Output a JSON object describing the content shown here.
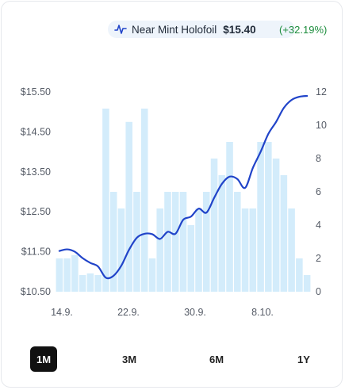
{
  "header": {
    "condition": "Near Mint Holofoil",
    "price": "$15.40",
    "change": "(+32.19%)",
    "icon": "price-line-icon"
  },
  "ranges": [
    {
      "label": "1M",
      "active": true
    },
    {
      "label": "3M",
      "active": false
    },
    {
      "label": "6M",
      "active": false
    },
    {
      "label": "1Y",
      "active": false
    }
  ],
  "colors": {
    "line": "#2144c9",
    "bars": "#d3ecfb",
    "positive": "#1e8e3e"
  },
  "chart_data": {
    "type": "bar+line",
    "x_tick_labels": [
      "14.9.",
      "22.9.",
      "30.9.",
      "8.10."
    ],
    "y_left": {
      "ticks": [
        "$15.50",
        "$14.50",
        "$13.50",
        "$12.50",
        "$11.50",
        "$10.50"
      ],
      "range": [
        10.5,
        15.5
      ]
    },
    "y_right": {
      "ticks": [
        "12",
        "10",
        "8",
        "6",
        "4",
        "2",
        "0"
      ],
      "range": [
        0,
        12
      ]
    },
    "volume": [
      2,
      2,
      2.2,
      1,
      1.1,
      1,
      11,
      6,
      5,
      10.2,
      6,
      11,
      2,
      5,
      6,
      6,
      6,
      4,
      5,
      6,
      8,
      7,
      9,
      6,
      5,
      5,
      9,
      9,
      8,
      7,
      5,
      2,
      1
    ],
    "price": [
      11.52,
      11.56,
      11.5,
      11.34,
      11.22,
      11.13,
      10.85,
      10.9,
      11.15,
      11.55,
      11.85,
      11.95,
      11.94,
      11.82,
      12.0,
      11.95,
      12.3,
      12.38,
      12.58,
      12.48,
      12.85,
      13.2,
      13.38,
      13.32,
      13.1,
      13.6,
      14.0,
      14.45,
      14.75,
      15.1,
      15.3,
      15.38,
      15.4
    ]
  }
}
